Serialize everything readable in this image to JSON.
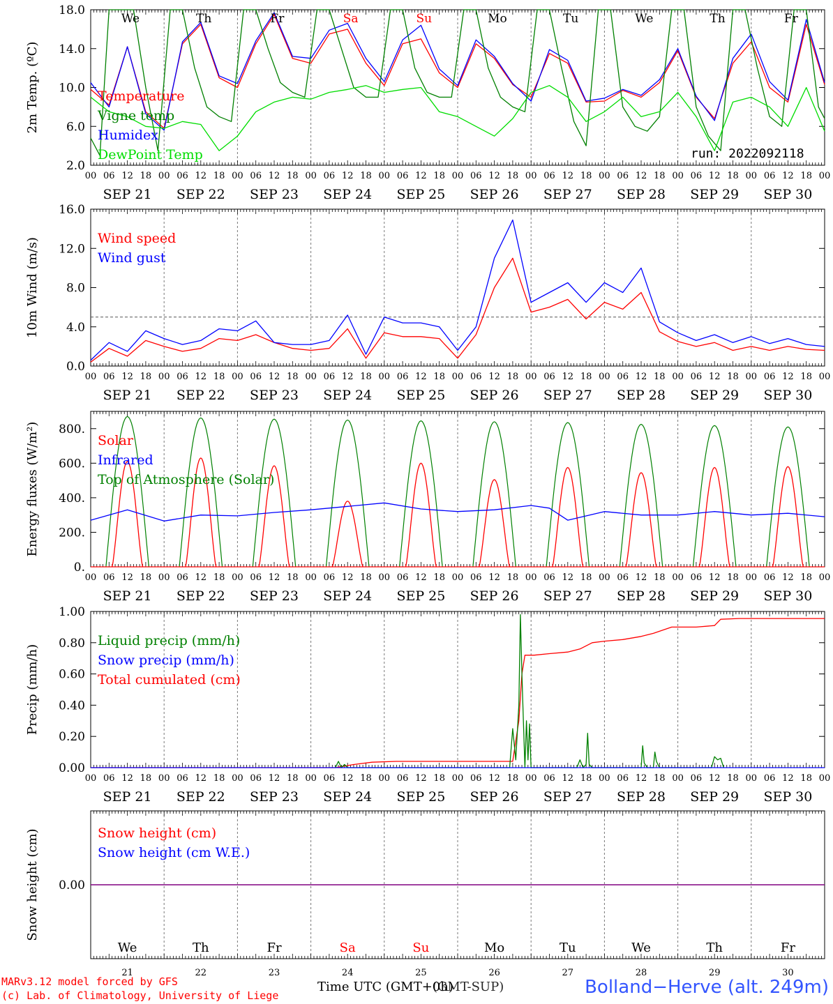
{
  "run_label": "run: 2022092118",
  "station": "Bolland−Herve (alt. 249m)",
  "footer_lines": [
    "MARv3.12 model forced by GFS",
    "(c) Lab. of Climatology, University of Liege"
  ],
  "x_axis_label": "Time UTC (GMT+0h)",
  "x_axis_label_overlay": "(GMT-SUP)",
  "dates": [
    "SEP 21",
    "SEP 22",
    "SEP 23",
    "SEP 24",
    "SEP 25",
    "SEP 26",
    "SEP 27",
    "SEP 28",
    "SEP 29",
    "SEP 30"
  ],
  "weekdays": [
    "We",
    "Th",
    "Fr",
    "Sa",
    "Su",
    "Mo",
    "Tu",
    "We",
    "Th",
    "Fr"
  ],
  "weekend_flags": [
    false,
    false,
    false,
    true,
    true,
    false,
    false,
    false,
    false,
    false
  ],
  "day_numbers": [
    "21",
    "22",
    "23",
    "24",
    "25",
    "26",
    "27",
    "28",
    "29",
    "30"
  ],
  "hour_labels": [
    "00",
    "06",
    "12",
    "18"
  ],
  "end_hour_label": "00",
  "colors": {
    "red": "#ff0000",
    "blue": "#0000ff",
    "green": "#008000",
    "lightgreen": "#00dd00",
    "purple": "#800080",
    "grid": "#777777"
  },
  "chart_data": [
    {
      "id": "temp",
      "type": "line",
      "ylabel": "2m Temp. (ºC)",
      "ylim": [
        2,
        18
      ],
      "ticks": [
        2,
        6,
        10,
        14,
        18
      ],
      "tick_labels": [
        "2.0",
        "6.0",
        "10.0",
        "14.0",
        "18.0"
      ],
      "x_unit": "hours since SEP 21 00 UTC",
      "xlim": [
        0,
        240
      ],
      "legend": [
        {
          "label": "Temperature",
          "color": "#ff0000"
        },
        {
          "label": "Vigne temp",
          "color": "#008000"
        },
        {
          "label": "Humidex",
          "color": "#0000ff"
        },
        {
          "label": "DewPoint Temp",
          "color": "#00dd00"
        }
      ],
      "series": [
        {
          "name": "Temperature",
          "color": "#ff0000",
          "x": [
            0,
            6,
            12,
            18,
            24,
            30,
            36,
            42,
            48,
            54,
            60,
            66,
            72,
            78,
            84,
            90,
            96,
            102,
            108,
            114,
            120,
            126,
            132,
            138,
            144,
            150,
            156,
            162,
            168,
            174,
            180,
            186,
            192,
            198,
            204,
            210,
            216,
            222,
            228,
            234,
            240
          ],
          "y": [
            9.8,
            8.2,
            14.2,
            7.5,
            5.8,
            14.5,
            16.5,
            11.0,
            10.0,
            14.5,
            17.5,
            13.0,
            12.5,
            15.5,
            16.0,
            12.5,
            10.2,
            14.5,
            15.0,
            11.5,
            10.0,
            14.5,
            13.0,
            10.3,
            9.0,
            13.5,
            12.5,
            8.5,
            8.6,
            9.7,
            9.0,
            10.5,
            13.8,
            9.0,
            6.8,
            12.5,
            14.7,
            10.0,
            8.5,
            16.5,
            10.3
          ]
        },
        {
          "name": "Humidex",
          "color": "#0000ff",
          "x": [
            0,
            6,
            12,
            18,
            24,
            30,
            36,
            42,
            48,
            54,
            60,
            66,
            72,
            78,
            84,
            90,
            96,
            102,
            108,
            114,
            120,
            126,
            132,
            138,
            144,
            150,
            156,
            162,
            168,
            174,
            180,
            186,
            192,
            198,
            204,
            210,
            216,
            222,
            228,
            234,
            240
          ],
          "y": [
            10.5,
            8.0,
            14.2,
            7.3,
            5.6,
            14.7,
            16.7,
            11.2,
            10.4,
            14.8,
            17.7,
            13.2,
            13.0,
            15.9,
            16.6,
            13.0,
            10.6,
            14.9,
            16.4,
            11.9,
            10.2,
            14.9,
            13.2,
            10.4,
            8.6,
            13.9,
            12.8,
            8.6,
            8.9,
            9.8,
            9.2,
            10.8,
            14.0,
            9.1,
            6.6,
            13.0,
            15.5,
            10.6,
            8.7,
            17.0,
            10.5
          ]
        },
        {
          "name": "Vigne temp",
          "color": "#008000",
          "x": [
            0,
            3,
            6,
            10,
            14,
            18,
            22,
            26,
            30,
            34,
            38,
            42,
            46,
            50,
            54,
            58,
            62,
            66,
            70,
            74,
            78,
            82,
            86,
            90,
            94,
            98,
            102,
            106,
            110,
            114,
            118,
            122,
            126,
            130,
            134,
            138,
            142,
            146,
            150,
            154,
            158,
            162,
            166,
            170,
            174,
            178,
            182,
            186,
            190,
            194,
            198,
            202,
            206,
            210,
            214,
            218,
            222,
            226,
            230,
            234,
            238,
            240
          ],
          "y": [
            4.8,
            3.0,
            18.0,
            18.0,
            18.0,
            10.0,
            3.5,
            18.0,
            18.0,
            12.0,
            8.0,
            7.0,
            6.5,
            18.0,
            18.0,
            14.0,
            10.5,
            9.5,
            9.0,
            18.0,
            18.0,
            14.0,
            10.0,
            9.0,
            9.0,
            18.0,
            18.0,
            12.0,
            9.5,
            9.0,
            9.0,
            18.0,
            18.0,
            12.0,
            9.0,
            8.0,
            7.5,
            18.0,
            18.0,
            12.0,
            6.5,
            4.0,
            18.0,
            18.0,
            8.0,
            6.0,
            5.5,
            7.0,
            18.0,
            18.0,
            8.0,
            5.0,
            3.5,
            18.0,
            18.0,
            12.0,
            7.0,
            6.0,
            18.0,
            18.0,
            8.0,
            6.8
          ]
        },
        {
          "name": "DewPoint Temp",
          "color": "#00dd00",
          "x": [
            0,
            6,
            12,
            18,
            24,
            30,
            36,
            42,
            48,
            54,
            60,
            66,
            72,
            78,
            84,
            90,
            96,
            102,
            108,
            114,
            120,
            126,
            132,
            138,
            144,
            150,
            156,
            162,
            168,
            174,
            180,
            186,
            192,
            198,
            204,
            210,
            216,
            222,
            228,
            234,
            240
          ],
          "y": [
            9.0,
            7.5,
            7.0,
            6.0,
            5.8,
            6.5,
            6.2,
            3.5,
            5.0,
            7.5,
            8.5,
            9.0,
            8.8,
            9.5,
            9.8,
            10.2,
            9.5,
            9.8,
            10.0,
            7.5,
            7.0,
            6.0,
            5.0,
            6.8,
            9.5,
            10.2,
            9.0,
            6.5,
            7.5,
            9.0,
            7.0,
            7.5,
            9.5,
            7.0,
            3.5,
            8.5,
            9.0,
            8.0,
            6.0,
            10.0,
            5.5
          ]
        }
      ]
    },
    {
      "id": "wind",
      "type": "line",
      "ylabel": "10m Wind (m/s)",
      "ylim": [
        0,
        16
      ],
      "ticks": [
        0,
        4,
        8,
        12,
        16
      ],
      "tick_labels": [
        "0.0",
        "4.0",
        "8.0",
        "12.0",
        "16.0"
      ],
      "reference_line": 5.0,
      "x_unit": "hours since SEP 21 00 UTC",
      "xlim": [
        0,
        240
      ],
      "legend": [
        {
          "label": "Wind speed",
          "color": "#ff0000"
        },
        {
          "label": "Wind gust",
          "color": "#0000ff"
        }
      ],
      "series": [
        {
          "name": "Wind speed",
          "color": "#ff0000",
          "x": [
            0,
            6,
            12,
            18,
            24,
            30,
            36,
            42,
            48,
            54,
            60,
            66,
            72,
            78,
            84,
            90,
            96,
            102,
            108,
            114,
            120,
            126,
            132,
            138,
            144,
            150,
            156,
            162,
            168,
            174,
            180,
            186,
            192,
            198,
            204,
            210,
            216,
            222,
            228,
            234,
            240
          ],
          "y": [
            0.4,
            1.8,
            1.0,
            2.6,
            2.0,
            1.5,
            1.8,
            2.8,
            2.6,
            3.2,
            2.4,
            1.8,
            1.6,
            1.8,
            3.8,
            0.8,
            3.4,
            3.0,
            3.0,
            2.8,
            0.8,
            3.2,
            8.0,
            11.0,
            5.5,
            6.0,
            6.8,
            4.8,
            6.5,
            5.8,
            7.5,
            3.5,
            2.5,
            2.0,
            2.4,
            1.6,
            2.0,
            1.6,
            2.0,
            1.7,
            1.6
          ]
        },
        {
          "name": "Wind gust",
          "color": "#0000ff",
          "x": [
            0,
            6,
            12,
            18,
            24,
            30,
            36,
            42,
            48,
            54,
            60,
            66,
            72,
            78,
            84,
            90,
            96,
            102,
            108,
            114,
            120,
            126,
            132,
            138,
            144,
            150,
            156,
            162,
            168,
            174,
            180,
            186,
            192,
            198,
            204,
            210,
            216,
            222,
            228,
            234,
            240
          ],
          "y": [
            0.6,
            2.4,
            1.5,
            3.6,
            2.8,
            2.2,
            2.6,
            3.8,
            3.6,
            4.6,
            2.4,
            2.2,
            2.2,
            2.6,
            5.2,
            1.2,
            5.0,
            4.4,
            4.4,
            4.0,
            1.6,
            4.0,
            11.0,
            14.9,
            6.5,
            7.5,
            8.5,
            6.5,
            8.5,
            7.5,
            10.0,
            4.5,
            3.4,
            2.6,
            3.2,
            2.4,
            3.0,
            2.3,
            2.8,
            2.2,
            2.0
          ]
        }
      ]
    },
    {
      "id": "energy",
      "type": "line",
      "ylabel": "Energy fluxes (W/m²)",
      "ylim": [
        0,
        900
      ],
      "ticks": [
        0,
        200,
        400,
        600,
        800
      ],
      "tick_labels": [
        "0.",
        "200.",
        "400.",
        "600.",
        "800."
      ],
      "x_unit": "hours since SEP 21 00 UTC",
      "xlim": [
        0,
        240
      ],
      "legend": [
        {
          "label": "Solar",
          "color": "#ff0000"
        },
        {
          "label": "Infrared",
          "color": "#0000ff"
        },
        {
          "label": "Top of Atmosphere (Solar)",
          "color": "#008000"
        }
      ],
      "daily_toa_peak": [
        870,
        862,
        855,
        850,
        845,
        840,
        835,
        825,
        818,
        810
      ],
      "daily_solar_peak": [
        610,
        630,
        585,
        380,
        600,
        505,
        575,
        545,
        575,
        580
      ],
      "series": [
        {
          "name": "Infrared",
          "color": "#0000ff",
          "x": [
            0,
            12,
            24,
            36,
            48,
            60,
            72,
            84,
            96,
            108,
            120,
            132,
            144,
            150,
            156,
            168,
            180,
            192,
            204,
            216,
            228,
            240
          ],
          "y": [
            270,
            330,
            265,
            300,
            295,
            315,
            330,
            350,
            370,
            335,
            320,
            330,
            355,
            340,
            270,
            320,
            300,
            300,
            320,
            300,
            310,
            290
          ]
        }
      ]
    },
    {
      "id": "precip",
      "type": "line",
      "ylabel": "Precip (mm/h)",
      "ylim": [
        0,
        1
      ],
      "ticks": [
        0,
        0.2,
        0.4,
        0.6,
        0.8,
        1.0
      ],
      "tick_labels": [
        "0.00",
        "0.20",
        "0.40",
        "0.60",
        "0.80",
        "1.00"
      ],
      "x_unit": "hours since SEP 21 00 UTC",
      "xlim": [
        0,
        240
      ],
      "legend": [
        {
          "label": "Liquid precip (mm/h)",
          "color": "#008000"
        },
        {
          "label": "Snow precip (mm/h)",
          "color": "#0000ff"
        },
        {
          "label": "Total cumulated (cm)",
          "color": "#ff0000"
        }
      ],
      "series": [
        {
          "name": "Total cumulated (cm)",
          "color": "#ff0000",
          "x": [
            0,
            80,
            86,
            92,
            100,
            138,
            140,
            141,
            142,
            143,
            145,
            150,
            156,
            160,
            164,
            168,
            174,
            180,
            184,
            190,
            198,
            204,
            206,
            212,
            240
          ],
          "y": [
            0,
            0,
            0.02,
            0.035,
            0.04,
            0.04,
            0.3,
            0.6,
            0.72,
            0.72,
            0.72,
            0.73,
            0.74,
            0.76,
            0.8,
            0.81,
            0.82,
            0.84,
            0.86,
            0.9,
            0.9,
            0.91,
            0.95,
            0.955,
            0.955
          ]
        },
        {
          "name": "Liquid precip (mm/h)",
          "color": "#008000",
          "x": [
            80,
            81,
            82,
            83,
            84,
            86,
            137,
            138,
            139,
            140,
            140.5,
            141,
            141.5,
            142,
            142.5,
            143,
            143.5,
            144,
            159,
            160,
            161,
            162,
            162.5,
            163,
            164,
            180,
            180.5,
            181,
            182,
            184,
            184.5,
            185,
            186,
            203,
            204,
            205,
            206,
            207
          ],
          "y": [
            0,
            0.04,
            0,
            0.02,
            0,
            0,
            0,
            0.25,
            0.05,
            0.4,
            0.98,
            0.6,
            0.3,
            0,
            0.3,
            0.05,
            0.28,
            0,
            0,
            0.05,
            0,
            0.02,
            0.22,
            0.02,
            0,
            0,
            0.14,
            0.03,
            0,
            0,
            0.1,
            0.04,
            0,
            0,
            0.07,
            0.05,
            0.06,
            0
          ]
        },
        {
          "name": "Snow precip (mm/h)",
          "color": "#0000ff",
          "x": [
            0,
            240
          ],
          "y": [
            0,
            0
          ]
        }
      ]
    },
    {
      "id": "snow",
      "type": "line",
      "ylabel": "Snow height (cm)",
      "ylim": [
        -1,
        1
      ],
      "ticks": [
        0
      ],
      "tick_labels": [
        "0.00"
      ],
      "x_unit": "hours since SEP 21 00 UTC",
      "xlim": [
        0,
        240
      ],
      "legend": [
        {
          "label": "Snow height (cm)",
          "color": "#ff0000"
        },
        {
          "label": "Snow height (cm W.E.)",
          "color": "#0000ff"
        }
      ],
      "series": [
        {
          "name": "Snow height (cm)",
          "color": "#800080",
          "x": [
            0,
            240
          ],
          "y": [
            0,
            0
          ]
        }
      ]
    }
  ]
}
